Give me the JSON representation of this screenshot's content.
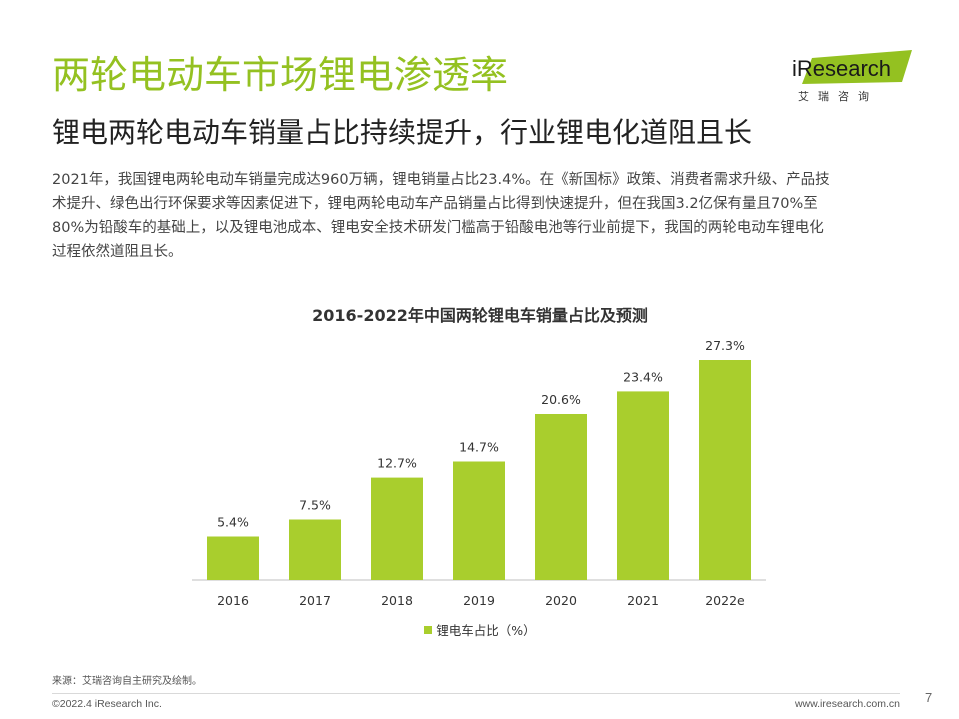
{
  "title": "两轮电动车市场锂电渗透率",
  "subtitle": "锂电两轮电动车销量占比持续提升，行业锂电化道阻且长",
  "logo": {
    "brand_text": "iResearch",
    "cn_text": "艾瑞咨询",
    "accent_color": "#94c121"
  },
  "body": {
    "lines": [
      "2021年，我国锂电两轮电动车销量完成达960万辆，锂电销量占比23.4%。在《新国标》政策、消费者需求升级、产品技",
      "术提升、绿色出行环保要求等因素促进下，锂电两轮电动车产品销量占比得到快速提升，但在我国3.2亿保有量且70%至",
      "80%为铅酸车的基础上，以及锂电池成本、锂电安全技术研发门槛高于铅酸电池等行业前提下，我国的两轮电动车锂电化",
      "过程依然道阻且长。"
    ]
  },
  "chart_data": {
    "type": "bar",
    "title": "2016-2022年中国两轮锂电车销量占比及预测",
    "categories": [
      "2016",
      "2017",
      "2018",
      "2019",
      "2020",
      "2021",
      "2022e"
    ],
    "series": [
      {
        "name": "锂电车占比（%）",
        "values": [
          5.4,
          7.5,
          12.7,
          14.7,
          20.6,
          23.4,
          27.3
        ],
        "labels": [
          "5.4%",
          "7.5%",
          "12.7%",
          "14.7%",
          "20.6%",
          "23.4%",
          "27.3%"
        ],
        "color": "#a9ce2d"
      }
    ],
    "ylim": [
      0,
      30
    ],
    "grid": false,
    "legend_position": "bottom"
  },
  "footer": {
    "source": "来源：艾瑞咨询自主研究及绘制。",
    "copyright": "©2022.4 iResearch Inc.",
    "website": "www.iresearch.com.cn",
    "page_number": "7"
  }
}
